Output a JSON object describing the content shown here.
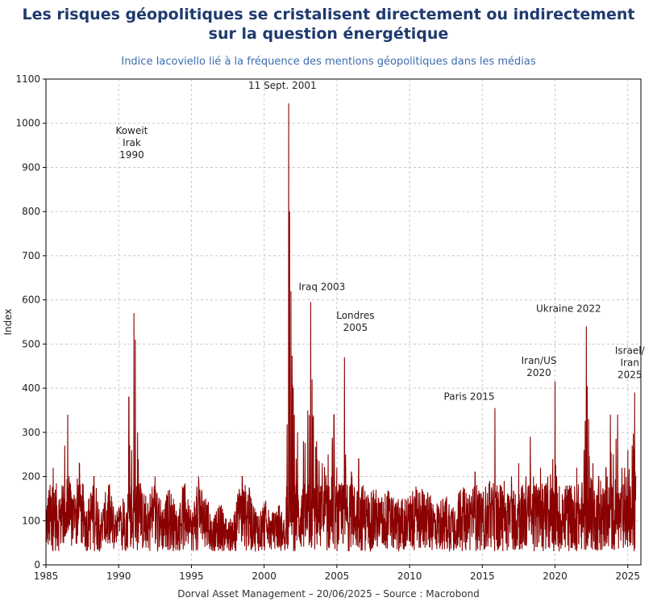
{
  "header": {
    "title_line1": "Les risques géopolitiques se cristalisent directement ou indirectement",
    "title_line2": "sur la question énergétique",
    "subtitle": "Indice Iacoviello lié à la fréquence des mentions géopolitiques dans les médias"
  },
  "footer": {
    "source": "Dorval Asset Management – 20/06/2025 – Source : Macrobond"
  },
  "colors": {
    "line": "#8b0000",
    "grid": "#c8c8c8",
    "title": "#1f3a6e",
    "subtitle": "#3d6cb0"
  },
  "chart_data": {
    "type": "line",
    "title": "Les risques géopolitiques se cristalisent directement ou indirectement sur la question énergétique",
    "subtitle": "Indice Iacoviello lié à la fréquence des mentions géopolitiques dans les médias",
    "xlabel": "",
    "ylabel": "Index",
    "xlim": [
      1985,
      2025.9
    ],
    "ylim": [
      0,
      1100
    ],
    "xticks": [
      1985,
      1990,
      1995,
      2000,
      2005,
      2010,
      2015,
      2020,
      2025
    ],
    "yticks": [
      0,
      100,
      200,
      300,
      400,
      500,
      600,
      700,
      800,
      900,
      1000,
      1100
    ],
    "grid": true,
    "series": [
      {
        "name": "",
        "note": "daily index, approximated by key points (year, value)",
        "points": [
          [
            1985.0,
            130
          ],
          [
            1985.5,
            220
          ],
          [
            1986.0,
            150
          ],
          [
            1986.3,
            270
          ],
          [
            1986.5,
            340
          ],
          [
            1986.8,
            150
          ],
          [
            1987.3,
            230
          ],
          [
            1987.8,
            120
          ],
          [
            1988.3,
            200
          ],
          [
            1988.8,
            110
          ],
          [
            1989.3,
            180
          ],
          [
            1989.8,
            100
          ],
          [
            1990.3,
            150
          ],
          [
            1990.6,
            120
          ],
          [
            1990.7,
            380
          ],
          [
            1990.9,
            260
          ],
          [
            1991.05,
            570
          ],
          [
            1991.15,
            510
          ],
          [
            1991.3,
            300
          ],
          [
            1991.6,
            160
          ],
          [
            1992.0,
            140
          ],
          [
            1992.5,
            200
          ],
          [
            1993.0,
            120
          ],
          [
            1993.5,
            170
          ],
          [
            1994.0,
            110
          ],
          [
            1994.5,
            180
          ],
          [
            1995.0,
            100
          ],
          [
            1995.5,
            200
          ],
          [
            1996.0,
            150
          ],
          [
            1996.5,
            90
          ],
          [
            1997.0,
            130
          ],
          [
            1997.5,
            80
          ],
          [
            1998.0,
            120
          ],
          [
            1998.5,
            200
          ],
          [
            1999.0,
            160
          ],
          [
            1999.5,
            110
          ],
          [
            2000.0,
            140
          ],
          [
            2000.5,
            100
          ],
          [
            2001.0,
            130
          ],
          [
            2001.5,
            80
          ],
          [
            2001.69,
            1045
          ],
          [
            2001.75,
            800
          ],
          [
            2001.85,
            620
          ],
          [
            2002.0,
            400
          ],
          [
            2002.3,
            300
          ],
          [
            2002.7,
            280
          ],
          [
            2003.0,
            350
          ],
          [
            2003.2,
            595
          ],
          [
            2003.3,
            420
          ],
          [
            2003.6,
            280
          ],
          [
            2004.0,
            230
          ],
          [
            2004.4,
            250
          ],
          [
            2004.8,
            340
          ],
          [
            2005.0,
            220
          ],
          [
            2005.4,
            180
          ],
          [
            2005.52,
            470
          ],
          [
            2005.6,
            250
          ],
          [
            2006.0,
            210
          ],
          [
            2006.5,
            240
          ],
          [
            2007.0,
            150
          ],
          [
            2007.5,
            170
          ],
          [
            2008.0,
            140
          ],
          [
            2008.5,
            160
          ],
          [
            2009.0,
            130
          ],
          [
            2009.5,
            150
          ],
          [
            2010.0,
            140
          ],
          [
            2010.5,
            170
          ],
          [
            2011.0,
            160
          ],
          [
            2011.5,
            140
          ],
          [
            2012.0,
            130
          ],
          [
            2012.5,
            150
          ],
          [
            2013.0,
            130
          ],
          [
            2013.5,
            170
          ],
          [
            2014.0,
            150
          ],
          [
            2014.5,
            210
          ],
          [
            2015.0,
            150
          ],
          [
            2015.5,
            190
          ],
          [
            2015.87,
            355
          ],
          [
            2016.0,
            180
          ],
          [
            2016.5,
            190
          ],
          [
            2017.0,
            200
          ],
          [
            2017.5,
            230
          ],
          [
            2018.0,
            200
          ],
          [
            2018.3,
            290
          ],
          [
            2018.6,
            180
          ],
          [
            2019.0,
            220
          ],
          [
            2019.5,
            200
          ],
          [
            2020.0,
            415
          ],
          [
            2020.1,
            200
          ],
          [
            2020.5,
            160
          ],
          [
            2021.0,
            180
          ],
          [
            2021.5,
            220
          ],
          [
            2022.0,
            260
          ],
          [
            2022.15,
            540
          ],
          [
            2022.3,
            330
          ],
          [
            2022.6,
            230
          ],
          [
            2023.0,
            200
          ],
          [
            2023.5,
            220
          ],
          [
            2023.8,
            340
          ],
          [
            2024.0,
            250
          ],
          [
            2024.3,
            340
          ],
          [
            2024.6,
            220
          ],
          [
            2025.0,
            260
          ],
          [
            2025.3,
            270
          ],
          [
            2025.47,
            390
          ],
          [
            2025.55,
            200
          ]
        ]
      }
    ],
    "annotations": [
      {
        "lines": [
          "Koweit",
          "Irak",
          "1990"
        ],
        "x": 1990.9,
        "y": 570
      },
      {
        "lines": [
          "11 Sept. 2001"
        ],
        "x": 2001.7,
        "y": 1045
      },
      {
        "lines": [
          "Iraq 2003"
        ],
        "x": 2003.2,
        "y": 595
      },
      {
        "lines": [
          "Londres",
          "2005"
        ],
        "x": 2005.5,
        "y": 470
      },
      {
        "lines": [
          "Paris 2015"
        ],
        "x": 2015.87,
        "y": 355
      },
      {
        "lines": [
          "Iran/US",
          "2020"
        ],
        "x": 2020.0,
        "y": 415
      },
      {
        "lines": [
          "Ukraine 2022"
        ],
        "x": 2022.15,
        "y": 540
      },
      {
        "lines": [
          "Israel/",
          "Iran",
          "2025"
        ],
        "x": 2025.47,
        "y": 390
      }
    ]
  }
}
